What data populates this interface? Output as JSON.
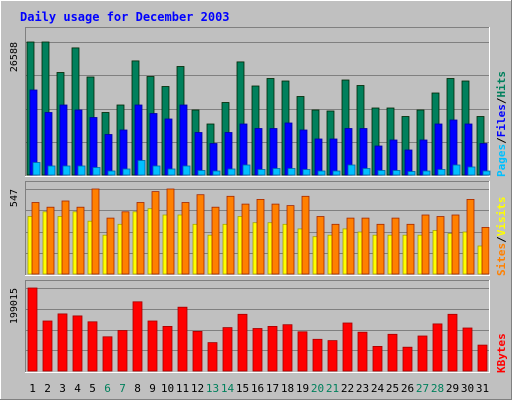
{
  "title": "Daily usage for December 2003",
  "colors": {
    "background": "#c0c0c0",
    "title": "#0000ff",
    "hits": "#00805c",
    "files": "#0000ff",
    "pages": "#00c0ff",
    "visits": "#ffff00",
    "sites": "#ff8000",
    "kbytes": "#ff0000",
    "weekday_label": "#000000",
    "weekend_label": "#00805c"
  },
  "chart_data": [
    {
      "type": "bar",
      "name": "hits-files-pages",
      "categories": [
        "1",
        "2",
        "3",
        "4",
        "5",
        "6",
        "7",
        "8",
        "9",
        "10",
        "11",
        "12",
        "13",
        "14",
        "15",
        "16",
        "17",
        "18",
        "19",
        "20",
        "21",
        "22",
        "23",
        "24",
        "25",
        "26",
        "27",
        "28",
        "29",
        "30",
        "31"
      ],
      "weekend": [
        "6",
        "7",
        "13",
        "14",
        "20",
        "21",
        "27",
        "28"
      ],
      "ymax_label": "26588",
      "ylim": [
        0,
        26588
      ],
      "legend": [
        "Pages",
        "/",
        "Files",
        "/",
        "Hits"
      ],
      "series": [
        {
          "name": "Hits",
          "values": [
            26588,
            26588,
            20500,
            25400,
            19600,
            12500,
            14000,
            22800,
            19700,
            17700,
            21700,
            13000,
            10200,
            14500,
            22600,
            17800,
            19300,
            18800,
            15700,
            13000,
            12800,
            19000,
            17900,
            13400,
            13400,
            11700,
            13000,
            16400,
            19300,
            18800,
            11700
          ]
        },
        {
          "name": "Files",
          "values": [
            17000,
            12500,
            14000,
            13000,
            11500,
            8100,
            9000,
            14000,
            12300,
            11200,
            14000,
            8500,
            6300,
            8500,
            10200,
            9300,
            9300,
            10400,
            9000,
            7200,
            7200,
            9300,
            9300,
            5800,
            7000,
            5000,
            7000,
            10200,
            11000,
            10200,
            6300
          ]
        },
        {
          "name": "Pages",
          "values": [
            2500,
            1800,
            1800,
            1800,
            1500,
            800,
            1200,
            2900,
            1800,
            1200,
            1800,
            900,
            800,
            1200,
            2000,
            1100,
            1300,
            1300,
            1100,
            800,
            800,
            2000,
            1300,
            900,
            900,
            700,
            800,
            1100,
            2000,
            1600,
            800
          ]
        }
      ]
    },
    {
      "type": "bar",
      "name": "visits-sites",
      "categories": [
        "1",
        "2",
        "3",
        "4",
        "5",
        "6",
        "7",
        "8",
        "9",
        "10",
        "11",
        "12",
        "13",
        "14",
        "15",
        "16",
        "17",
        "18",
        "19",
        "20",
        "21",
        "22",
        "23",
        "24",
        "25",
        "26",
        "27",
        "28",
        "29",
        "30",
        "31"
      ],
      "ymax_label": "547",
      "ylim": [
        0,
        547
      ],
      "legend": [
        "Sites",
        "/",
        "Visits"
      ],
      "series": [
        {
          "name": "Visits",
          "values": [
            370,
            400,
            370,
            400,
            340,
            250,
            320,
            400,
            420,
            380,
            380,
            320,
            250,
            320,
            370,
            330,
            330,
            320,
            290,
            240,
            250,
            290,
            270,
            250,
            250,
            250,
            250,
            280,
            260,
            270,
            180
          ]
        },
        {
          "name": "Sites",
          "values": [
            460,
            430,
            470,
            430,
            547,
            360,
            400,
            460,
            530,
            547,
            460,
            510,
            430,
            500,
            450,
            480,
            450,
            440,
            500,
            370,
            320,
            360,
            360,
            320,
            360,
            320,
            380,
            370,
            380,
            480,
            300
          ]
        }
      ]
    },
    {
      "type": "bar",
      "name": "kbytes",
      "categories": [
        "1",
        "2",
        "3",
        "4",
        "5",
        "6",
        "7",
        "8",
        "9",
        "10",
        "11",
        "12",
        "13",
        "14",
        "15",
        "16",
        "17",
        "18",
        "19",
        "20",
        "21",
        "22",
        "23",
        "24",
        "25",
        "26",
        "27",
        "28",
        "29",
        "30",
        "31"
      ],
      "ymax_label": "199015",
      "ylim": [
        0,
        199015
      ],
      "legend": [
        "KBytes"
      ],
      "series": [
        {
          "name": "KBytes",
          "values": [
            199015,
            120000,
            137000,
            132000,
            118000,
            82000,
            97000,
            166000,
            120000,
            107000,
            153000,
            95000,
            68000,
            104000,
            136000,
            102000,
            107000,
            111000,
            94000,
            76000,
            73000,
            115000,
            93000,
            59000,
            88000,
            57000,
            84000,
            113000,
            136000,
            103000,
            62000
          ]
        }
      ]
    }
  ]
}
